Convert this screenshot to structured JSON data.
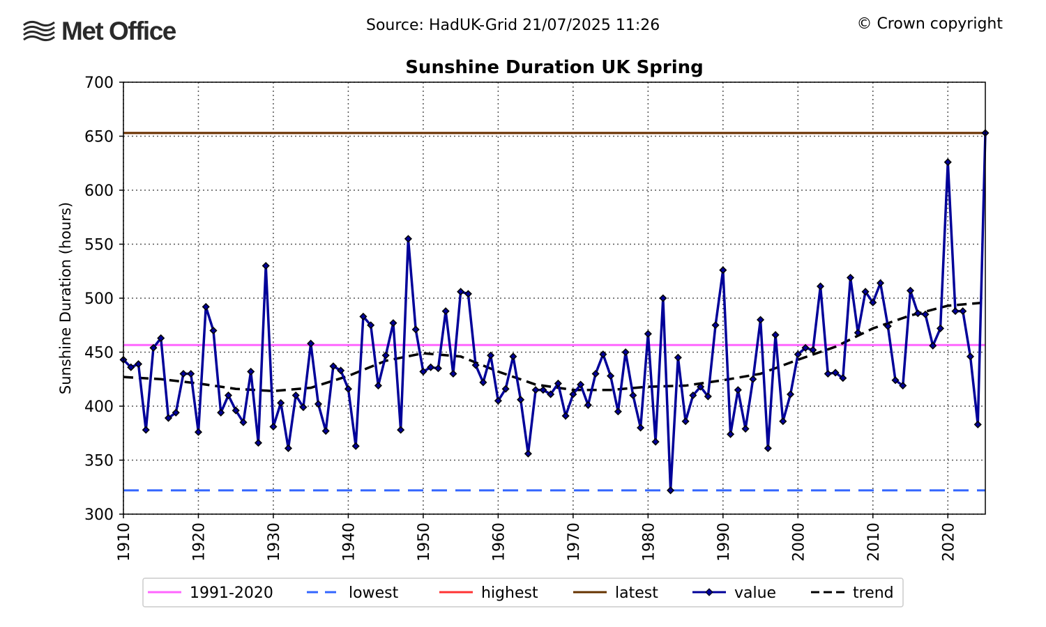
{
  "header": {
    "logo_text": "Met Office",
    "source": "Source: HadUK-Grid 21/07/2025 11:26",
    "copyright": "© Crown copyright"
  },
  "chart_data": {
    "type": "line",
    "title": "Sunshine Duration UK Spring",
    "xlabel": "",
    "ylabel": "Sunshine Duration (hours)",
    "xlim": [
      1910,
      2025
    ],
    "ylim": [
      300,
      700
    ],
    "x_ticks": [
      "1910",
      "1920",
      "1930",
      "1940",
      "1950",
      "1960",
      "1970",
      "1980",
      "1990",
      "2000",
      "2010",
      "2020"
    ],
    "y_ticks": [
      "300",
      "350",
      "400",
      "450",
      "500",
      "550",
      "600",
      "650",
      "700"
    ],
    "grid": true,
    "legend_position": "bottom",
    "reference_lines": [
      {
        "name": "1991-2020",
        "value": 456.6,
        "color": "#ff66ff",
        "style": "solid"
      },
      {
        "name": "lowest",
        "value": 322,
        "color": "#3366ff",
        "style": "dashed"
      },
      {
        "name": "highest",
        "value": 653,
        "color": "#ff3333",
        "style": "solid"
      },
      {
        "name": "latest",
        "value": 653,
        "color": "#663300",
        "style": "solid"
      }
    ],
    "series": [
      {
        "name": "value",
        "color": "#000099",
        "marker": "diamond",
        "x_start": 1910,
        "values": [
          443,
          436,
          439,
          378,
          454,
          463,
          389,
          394,
          430,
          430,
          376,
          492,
          470,
          394,
          410,
          396,
          385,
          432,
          366,
          530,
          381,
          403,
          361,
          410,
          399,
          458,
          402,
          377,
          437,
          433,
          416,
          363,
          483,
          475,
          419,
          447,
          477,
          378,
          555,
          471,
          432,
          436,
          435,
          488,
          430,
          506,
          504,
          438,
          422,
          447,
          405,
          416,
          446,
          406,
          356,
          415,
          415,
          411,
          421,
          391,
          411,
          420,
          401,
          430,
          448,
          428,
          395,
          450,
          410,
          380,
          467,
          367,
          500,
          322,
          445,
          386,
          410,
          418,
          409,
          475,
          526,
          374,
          415,
          379,
          425,
          480,
          361,
          466,
          386,
          411,
          448,
          454,
          452,
          511,
          430,
          431,
          426,
          519,
          468,
          506,
          496,
          514,
          474,
          424,
          419,
          507,
          486,
          485,
          456,
          472,
          626,
          488,
          488,
          446,
          383,
          653
        ]
      },
      {
        "name": "trend",
        "color": "#000000",
        "style": "dashed",
        "x": [
          1910,
          1915,
          1920,
          1925,
          1930,
          1935,
          1940,
          1945,
          1950,
          1955,
          1960,
          1965,
          1970,
          1975,
          1980,
          1985,
          1990,
          1995,
          2000,
          2005,
          2010,
          2015,
          2020,
          2025
        ],
        "values": [
          427,
          425,
          421,
          416,
          414,
          417,
          428,
          442,
          449,
          446,
          432,
          420,
          415,
          415,
          418,
          419,
          424,
          430,
          443,
          455,
          472,
          484,
          493,
          496
        ]
      }
    ]
  }
}
